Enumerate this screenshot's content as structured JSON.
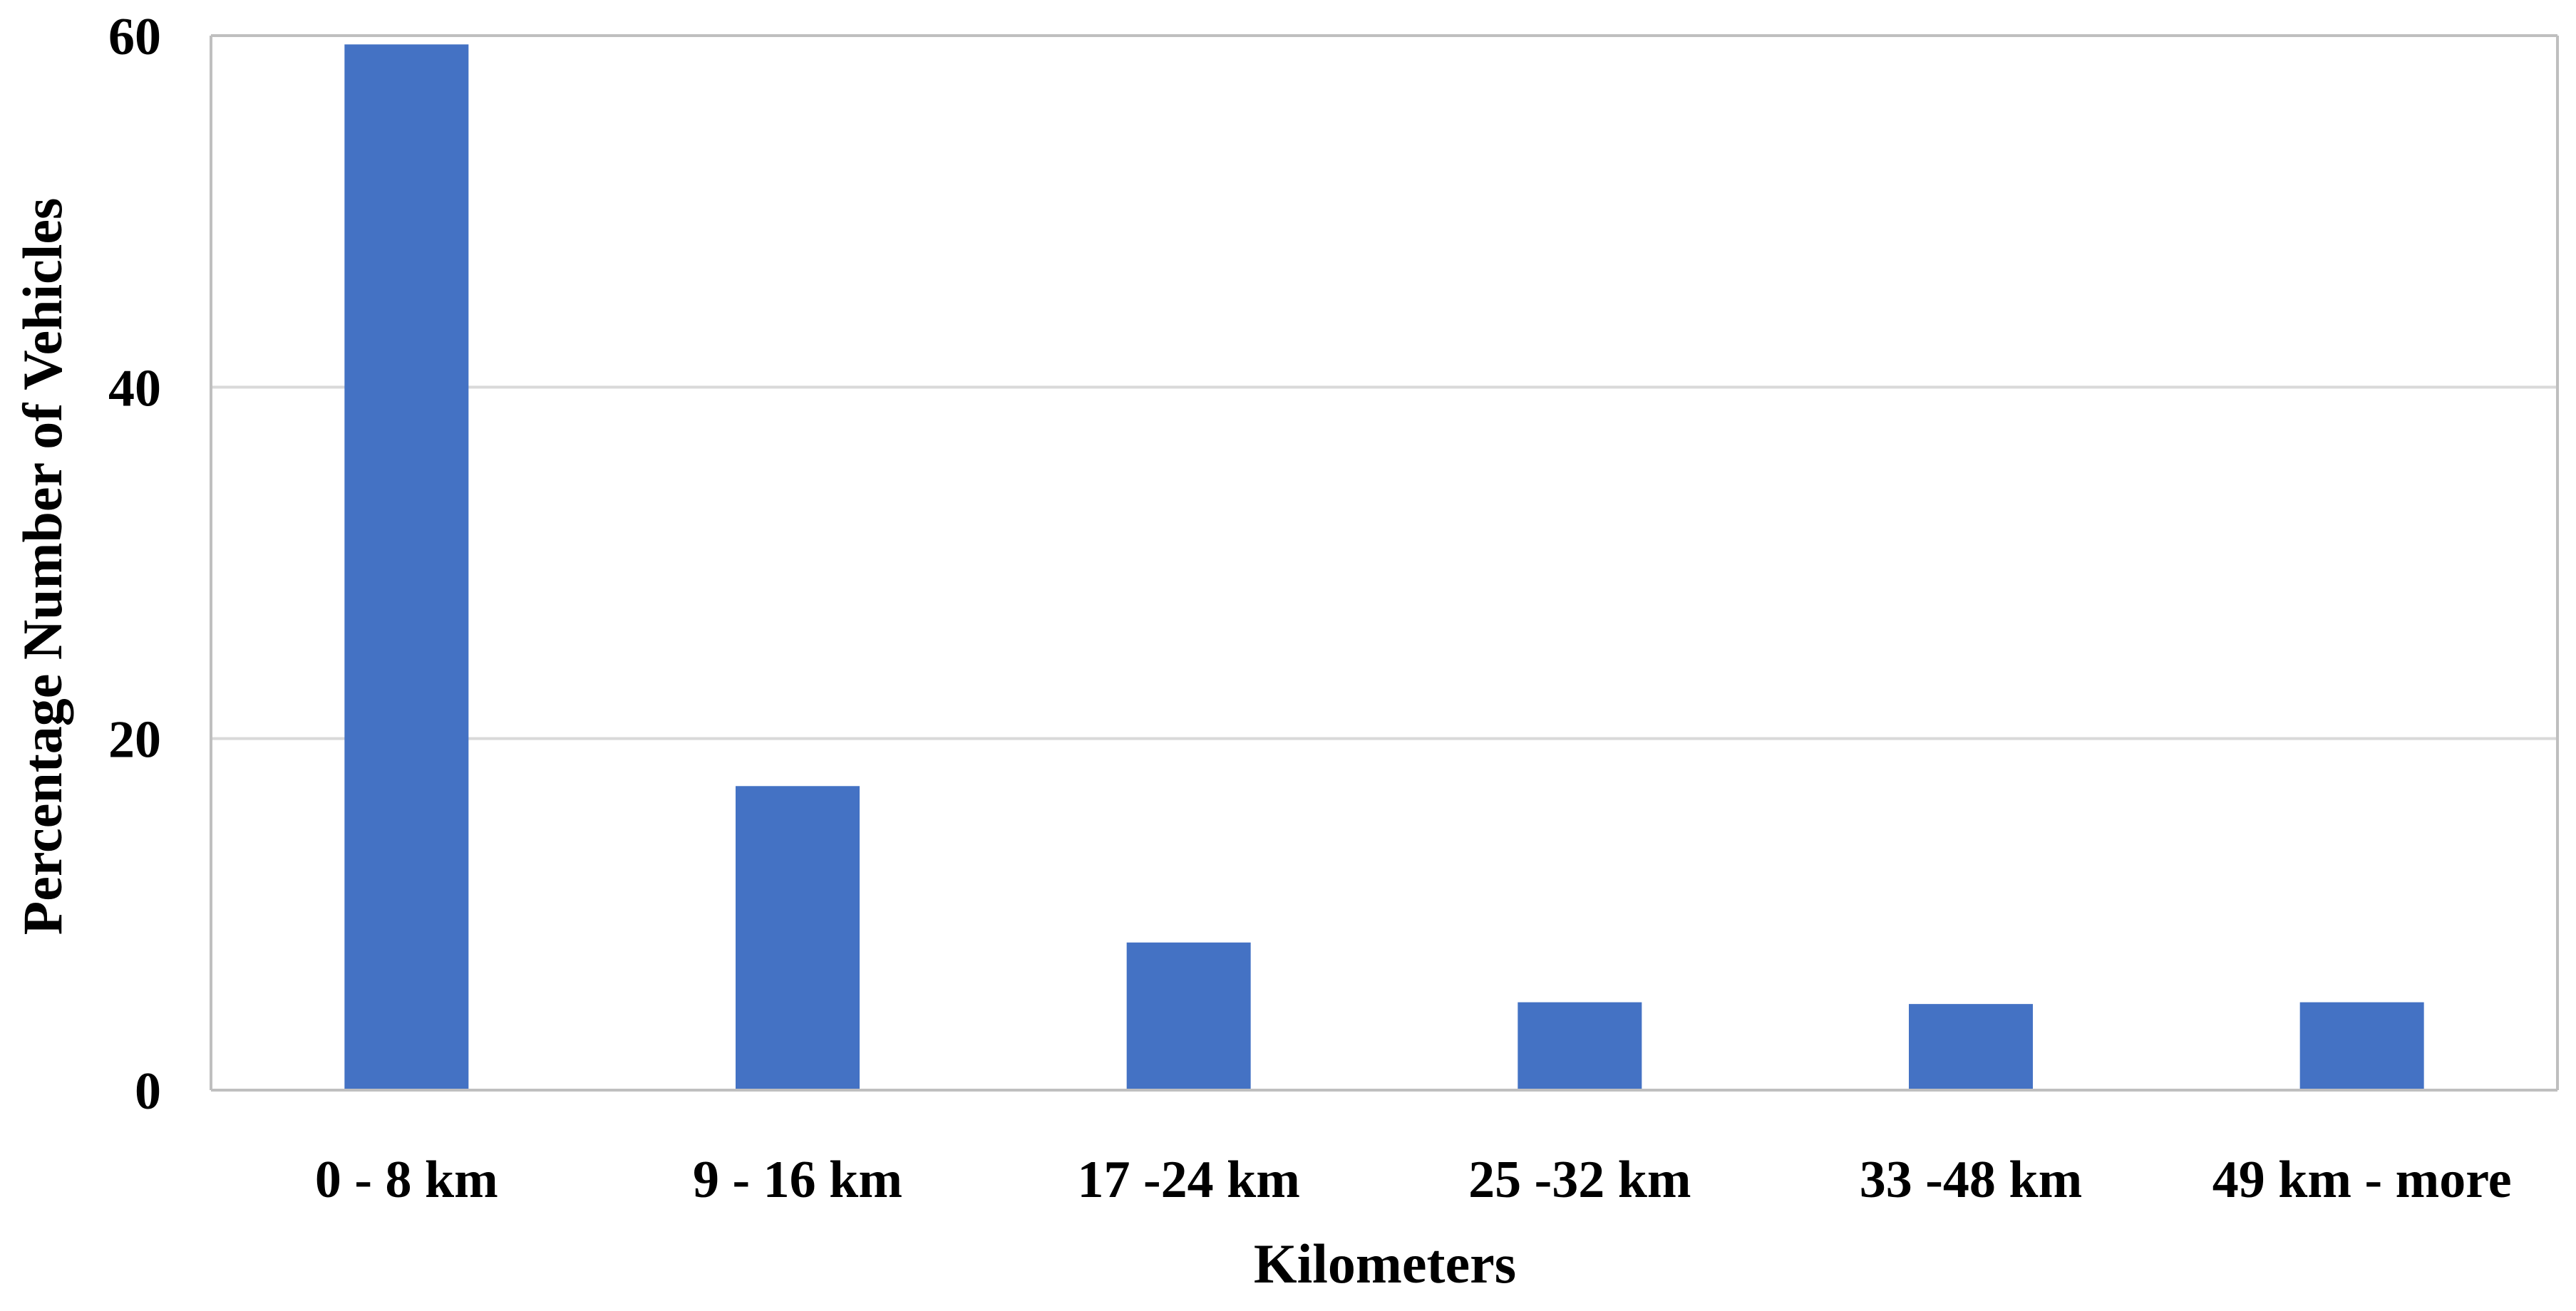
{
  "chart_data": {
    "type": "bar",
    "title": "",
    "xlabel": "Kilometers",
    "ylabel": "Percentage Number of Vehicles",
    "categories": [
      "0 - 8 km",
      "9 - 16 km",
      "17 -24 km",
      "25 -32 km",
      "33 -48 km",
      "49 km - more"
    ],
    "series": [
      {
        "values": [
          59.5,
          17.3,
          8.4,
          5.0,
          4.9,
          5.0
        ]
      }
    ],
    "ylim": [
      0,
      60
    ],
    "yticks": [
      0,
      20,
      40,
      60
    ],
    "grid": true,
    "legend": "none",
    "colors": {
      "bar": "#4472C4",
      "grid": "#D9D9D9",
      "axis": "#BFBFBF"
    }
  }
}
